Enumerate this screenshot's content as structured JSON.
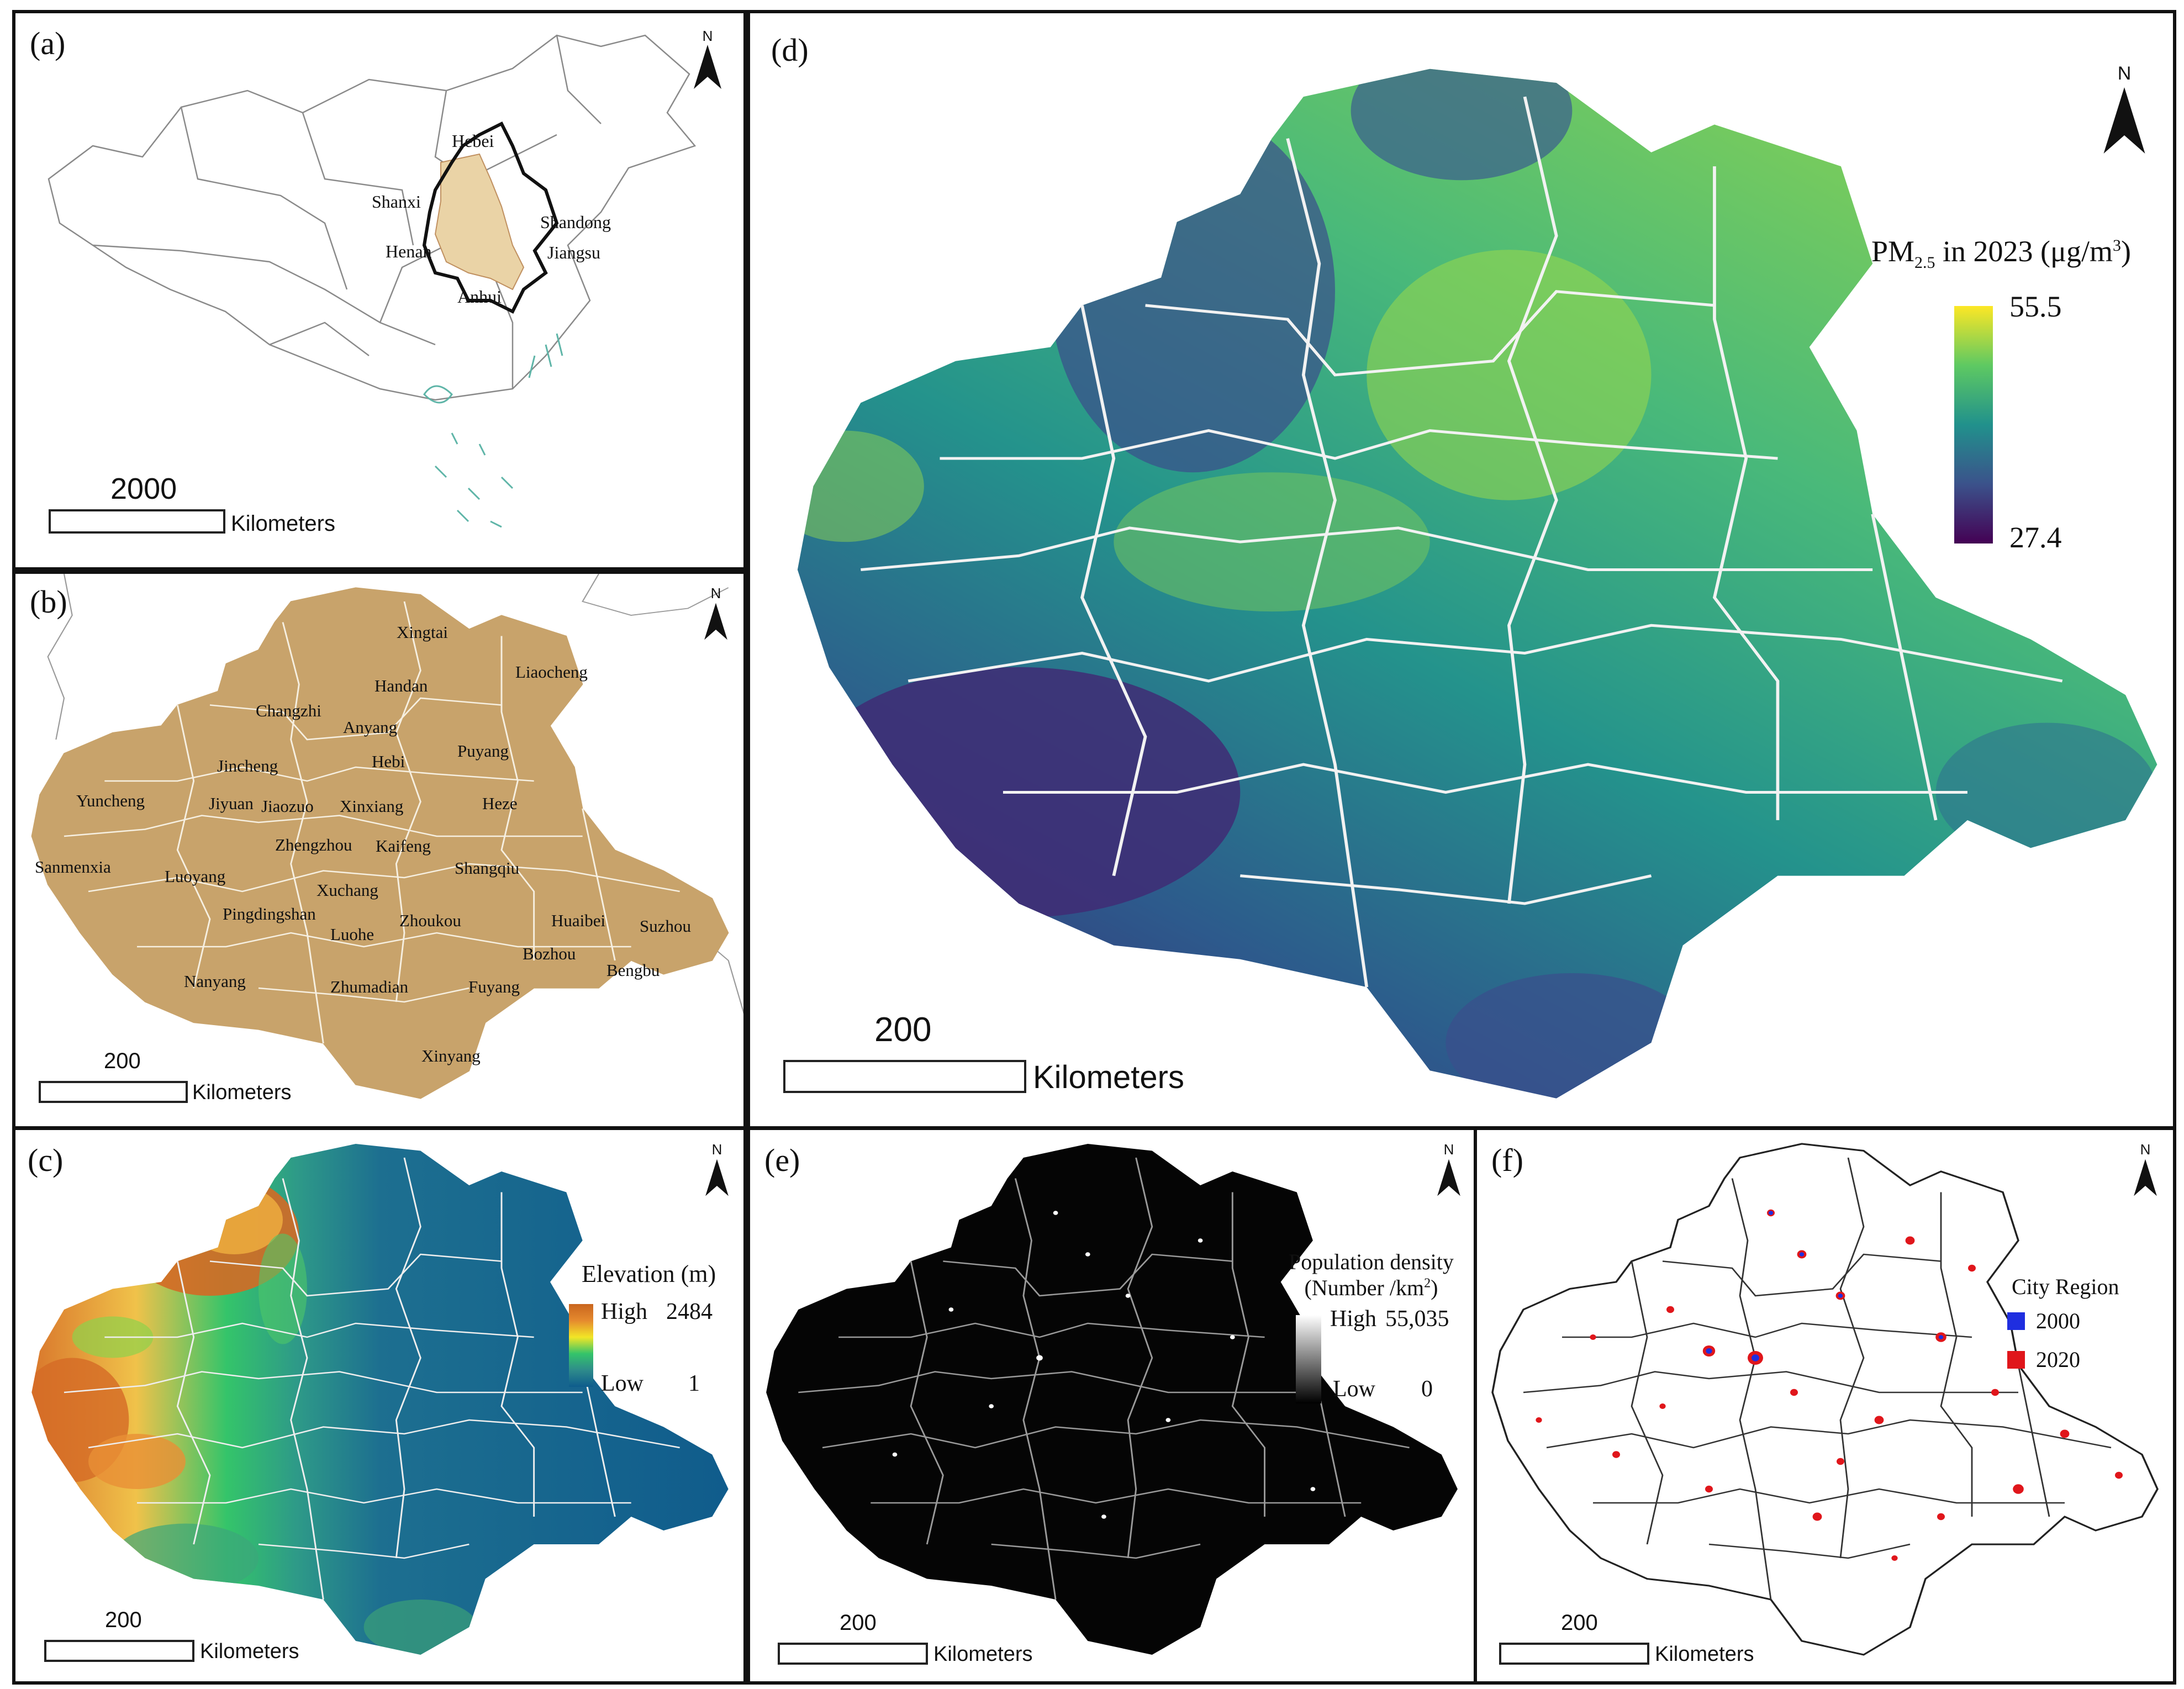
{
  "panels": {
    "a": {
      "label": "(a)",
      "provinces": [
        "Hebei",
        "Shanxi",
        "Shandong",
        "Henan",
        "Jiangsu",
        "Anhui"
      ],
      "scale": {
        "value": "2000",
        "unit": "Kilometers"
      },
      "north": "N"
    },
    "b": {
      "label": "(b)",
      "cities": [
        "Xingtai",
        "Liaocheng",
        "Handan",
        "Changzhi",
        "Anyang",
        "Hebi",
        "Puyang",
        "Jincheng",
        "Yuncheng",
        "Jiyuan",
        "Jiaozuo",
        "Xinxiang",
        "Heze",
        "Zhengzhou",
        "Kaifeng",
        "Sanmenxia",
        "Luoyang",
        "Shangqiu",
        "Xuchang",
        "Pingdingshan",
        "Zhoukou",
        "Huaibei",
        "Suzhou",
        "Luohe",
        "Bozhou",
        "Bengbu",
        "Nanyang",
        "Zhumadian",
        "Fuyang",
        "Xinyang"
      ],
      "scale": {
        "value": "200",
        "unit": "Kilometers"
      },
      "north": "N"
    },
    "c": {
      "label": "(c)",
      "legend": {
        "title": "Elevation (m)",
        "high_label": "High",
        "high_value": "2484",
        "low_label": "Low",
        "low_value": "1"
      },
      "scale": {
        "value": "200",
        "unit": "Kilometers"
      },
      "north": "N"
    },
    "d": {
      "label": "(d)",
      "legend": {
        "title_pre": "PM",
        "title_sub": "2.5",
        "title_post": " in 2023 (μg/m",
        "title_sup": "3",
        "title_end": ")",
        "max": "55.5",
        "min": "27.4"
      },
      "scale": {
        "value": "200",
        "unit": "Kilometers"
      },
      "north": "N"
    },
    "e": {
      "label": "(e)",
      "legend": {
        "title_line1": "Population density",
        "title_line2_pre": "(Number /km",
        "title_line2_sup": "2",
        "title_line2_end": ")",
        "high_label": "High",
        "high_value": "55,035",
        "low_label": "Low",
        "low_value": "0"
      },
      "scale": {
        "value": "200",
        "unit": "Kilometers"
      },
      "north": "N"
    },
    "f": {
      "label": "(f)",
      "legend": {
        "title": "City Region",
        "items": [
          {
            "label": "2000",
            "color": "#1f2ee0"
          },
          {
            "label": "2020",
            "color": "#e0161b"
          }
        ]
      },
      "scale": {
        "value": "200",
        "unit": "Kilometers"
      },
      "north": "N"
    }
  },
  "colors": {
    "region_fill": "#c8a36b",
    "china_highlight": "#ead3a6",
    "viridis": [
      "#440154",
      "#3b528b",
      "#21918c",
      "#5ec962",
      "#fde725"
    ],
    "elevation": [
      "#0e5c8c",
      "#2e8b8b",
      "#34c46a",
      "#f2e626",
      "#e58a2e",
      "#c9651e"
    ],
    "population": [
      "#000000",
      "#ffffff"
    ]
  }
}
